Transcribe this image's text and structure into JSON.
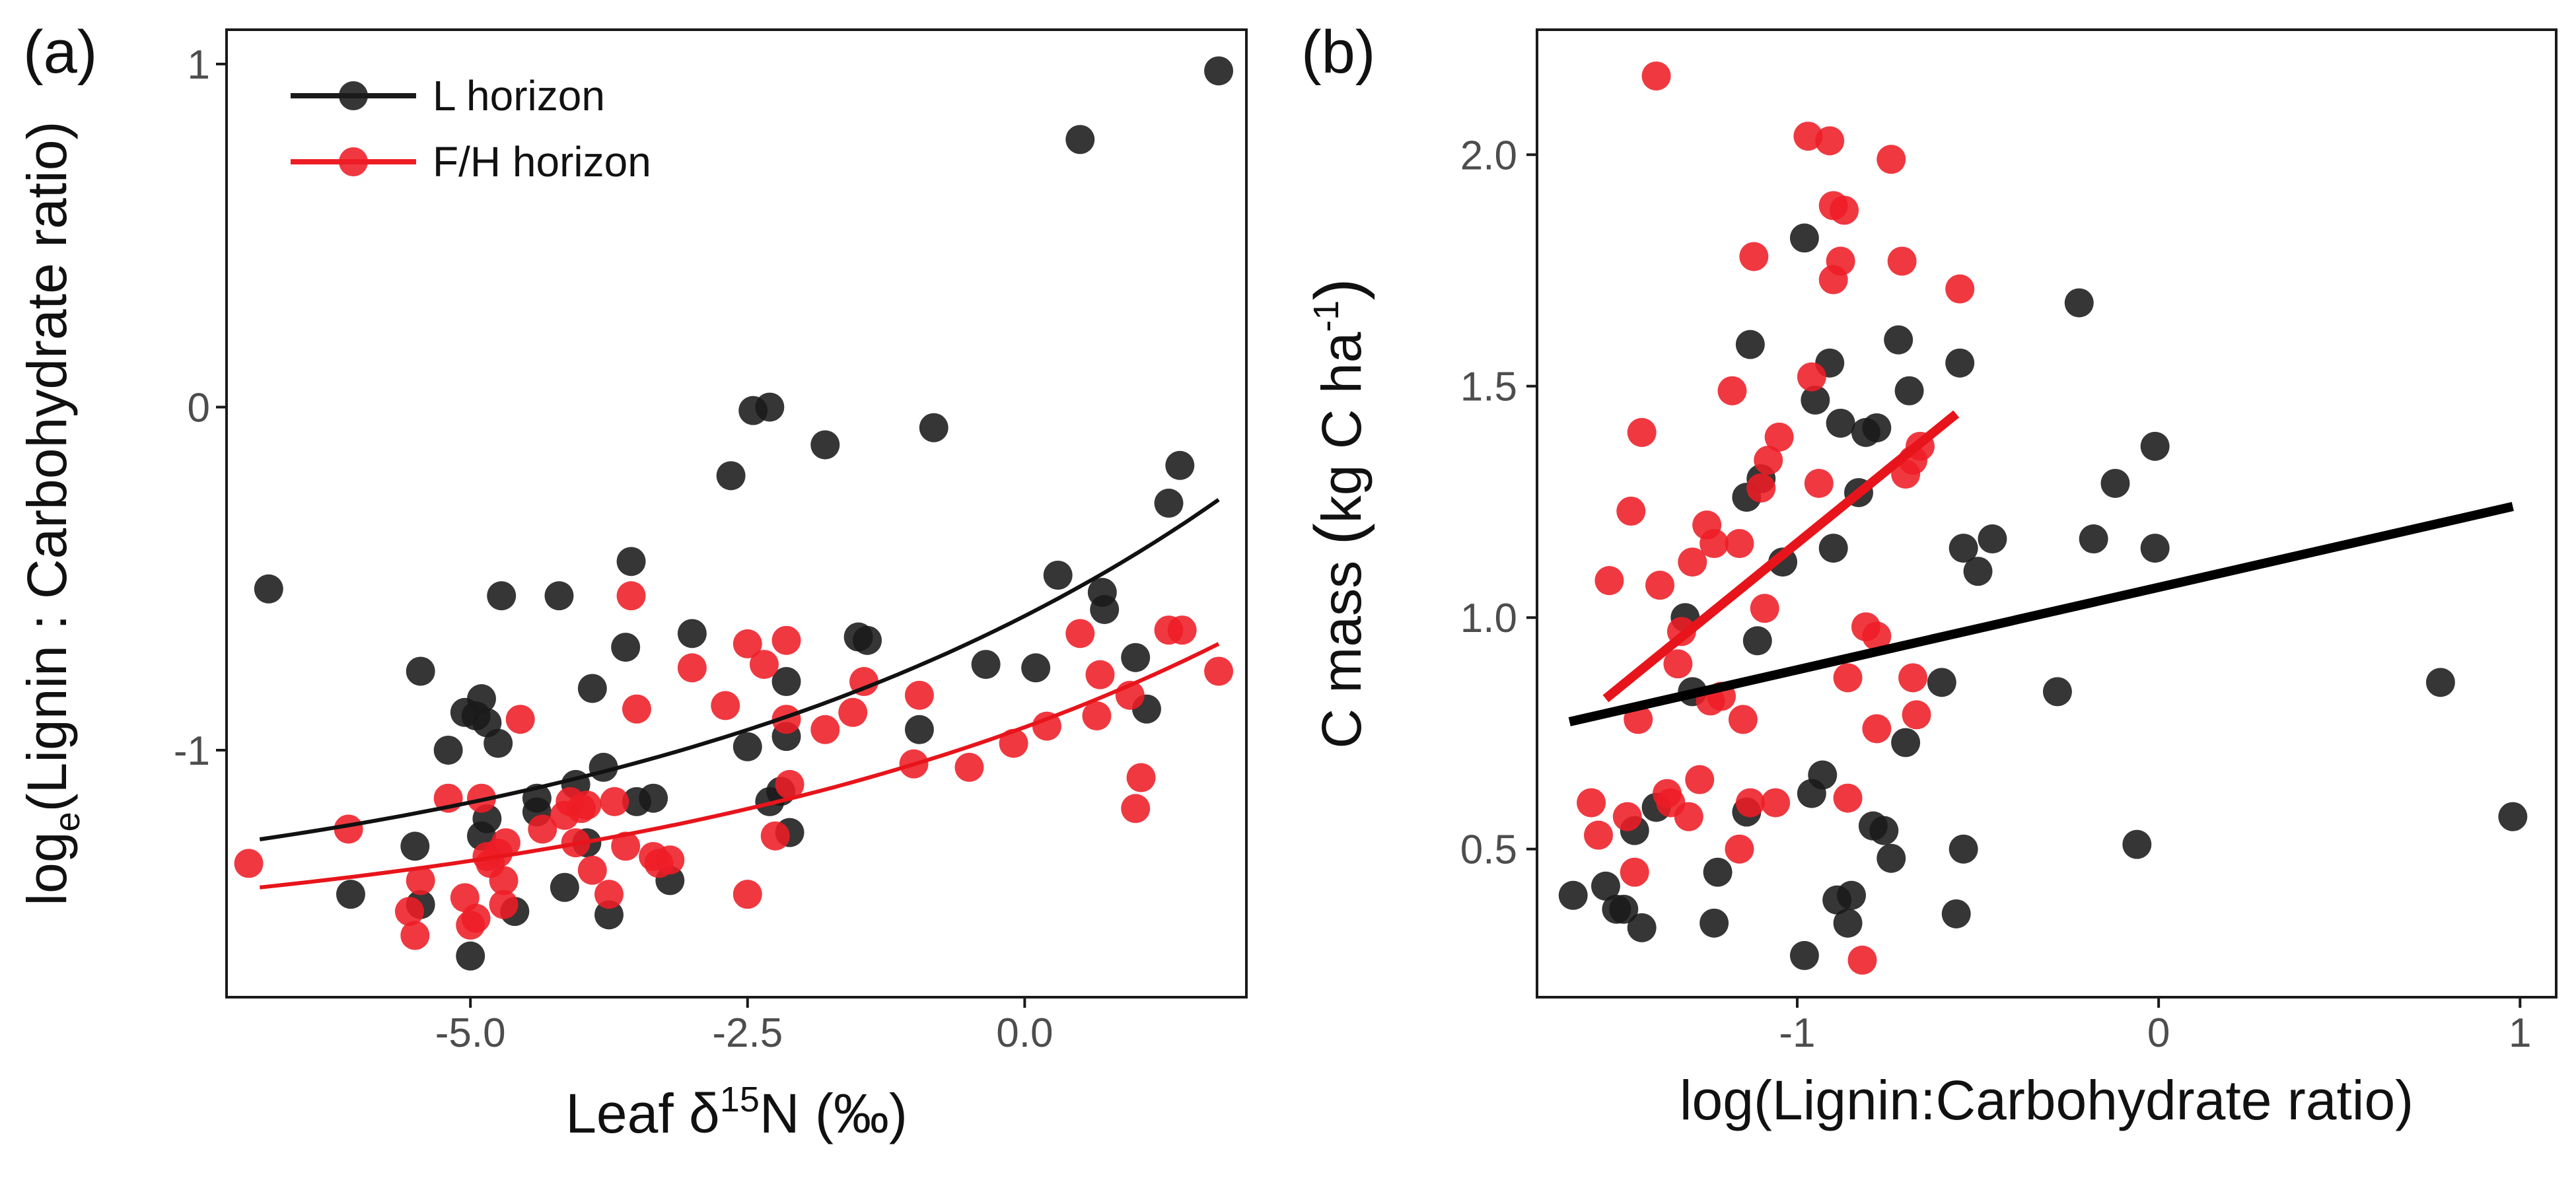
{
  "chart_data": [
    {
      "panel_label": "(a)",
      "type": "scatter",
      "xlabel": {
        "main": "Leaf δ",
        "sup": "15",
        "rest": "N (‰)"
      },
      "ylabel": {
        "main": "log",
        "sub": "e",
        "rest": "(Lignin : Carbohydrate ratio)"
      },
      "xlim": [
        -7.2,
        2.0
      ],
      "ylim": [
        -1.72,
        1.1
      ],
      "xticks": [
        -5.0,
        -2.5,
        0.0
      ],
      "xtick_labels": [
        "-5.0",
        "-2.5",
        "0.0"
      ],
      "yticks": [
        -1,
        0,
        1
      ],
      "ytick_labels": [
        "-1",
        "0",
        "1"
      ],
      "grid": false,
      "legend": {
        "position": "top-left",
        "items": [
          {
            "label": "L horizon",
            "color": "#1a1a1a"
          },
          {
            "label": "F/H horizon",
            "color": "#ee1c25"
          }
        ]
      },
      "series": [
        {
          "name": "L horizon",
          "color": "#1a1a1a",
          "points": [
            [
              -6.82,
              -0.53
            ],
            [
              -6.08,
              -1.42
            ],
            [
              -5.45,
              -0.77
            ],
            [
              -5.5,
              -1.28
            ],
            [
              -5.45,
              -1.45
            ],
            [
              -5.2,
              -1.0
            ],
            [
              -5.05,
              -0.89
            ],
            [
              -4.95,
              -0.9
            ],
            [
              -4.9,
              -0.85
            ],
            [
              -4.85,
              -0.92
            ],
            [
              -4.85,
              -1.2
            ],
            [
              -4.75,
              -0.98
            ],
            [
              -4.72,
              -0.55
            ],
            [
              -4.6,
              -1.47
            ],
            [
              -4.4,
              -1.14
            ],
            [
              -4.2,
              -0.55
            ],
            [
              -4.15,
              -1.4
            ],
            [
              -4.05,
              -1.1
            ],
            [
              -3.95,
              -1.27
            ],
            [
              -3.9,
              -0.82
            ],
            [
              -3.8,
              -1.05
            ],
            [
              -3.75,
              -1.48
            ],
            [
              -3.6,
              -0.7
            ],
            [
              -3.55,
              -0.45
            ],
            [
              -3.35,
              -1.14
            ],
            [
              -3.2,
              -1.38
            ],
            [
              -3.0,
              -0.66
            ],
            [
              -2.65,
              -0.2
            ],
            [
              -2.5,
              -0.99
            ],
            [
              -2.45,
              -0.01
            ],
            [
              -2.3,
              0.0
            ],
            [
              -2.2,
              -1.12
            ],
            [
              -2.15,
              -0.8
            ],
            [
              -2.15,
              -0.96
            ],
            [
              -2.12,
              -1.24
            ],
            [
              -1.8,
              -0.11
            ],
            [
              -1.5,
              -0.67
            ],
            [
              -1.42,
              -0.68
            ],
            [
              -0.95,
              -0.94
            ],
            [
              -0.82,
              -0.06
            ],
            [
              -0.35,
              -0.75
            ],
            [
              0.1,
              -0.76
            ],
            [
              0.3,
              -0.49
            ],
            [
              0.5,
              0.78
            ],
            [
              0.7,
              -0.54
            ],
            [
              0.72,
              -0.59
            ],
            [
              1.0,
              -0.73
            ],
            [
              1.1,
              -0.88
            ],
            [
              1.3,
              -0.28
            ],
            [
              1.4,
              -0.17
            ],
            [
              1.75,
              0.98
            ],
            [
              -5.0,
              -1.6
            ],
            [
              -4.9,
              -1.25
            ],
            [
              -4.4,
              -1.18
            ],
            [
              -3.5,
              -1.15
            ],
            [
              -2.3,
              -1.15
            ]
          ]
        },
        {
          "name": "F/H horizon",
          "color": "#ee1c25",
          "points": [
            [
              -7.0,
              -1.33
            ],
            [
              -6.1,
              -1.23
            ],
            [
              -5.55,
              -1.47
            ],
            [
              -5.5,
              -1.54
            ],
            [
              -5.45,
              -1.38
            ],
            [
              -5.2,
              -1.14
            ],
            [
              -5.05,
              -1.43
            ],
            [
              -5.0,
              -1.51
            ],
            [
              -4.95,
              -1.49
            ],
            [
              -4.9,
              -1.14
            ],
            [
              -4.85,
              -1.31
            ],
            [
              -4.82,
              -1.33
            ],
            [
              -4.75,
              -1.3
            ],
            [
              -4.7,
              -1.38
            ],
            [
              -4.68,
              -1.27
            ],
            [
              -4.55,
              -0.91
            ],
            [
              -4.35,
              -1.23
            ],
            [
              -4.15,
              -1.19
            ],
            [
              -4.1,
              -1.15
            ],
            [
              -4.05,
              -1.27
            ],
            [
              -4.0,
              -1.17
            ],
            [
              -3.95,
              -1.16
            ],
            [
              -3.9,
              -1.35
            ],
            [
              -3.75,
              -1.42
            ],
            [
              -3.7,
              -1.15
            ],
            [
              -3.6,
              -1.28
            ],
            [
              -3.55,
              -0.55
            ],
            [
              -3.5,
              -0.88
            ],
            [
              -3.35,
              -1.31
            ],
            [
              -3.2,
              -1.32
            ],
            [
              -3.0,
              -0.76
            ],
            [
              -2.7,
              -0.87
            ],
            [
              -2.5,
              -0.69
            ],
            [
              -2.5,
              -1.42
            ],
            [
              -2.35,
              -0.75
            ],
            [
              -2.25,
              -1.25
            ],
            [
              -2.15,
              -0.68
            ],
            [
              -2.15,
              -0.91
            ],
            [
              -2.12,
              -1.1
            ],
            [
              -1.8,
              -0.94
            ],
            [
              -1.55,
              -0.89
            ],
            [
              -1.45,
              -0.8
            ],
            [
              -1.0,
              -1.04
            ],
            [
              -0.95,
              -0.84
            ],
            [
              -0.5,
              -1.05
            ],
            [
              -0.1,
              -0.98
            ],
            [
              0.2,
              -0.93
            ],
            [
              0.5,
              -0.66
            ],
            [
              0.65,
              -0.9
            ],
            [
              0.68,
              -0.78
            ],
            [
              0.95,
              -0.84
            ],
            [
              1.0,
              -1.17
            ],
            [
              1.05,
              -1.08
            ],
            [
              1.3,
              -0.65
            ],
            [
              1.42,
              -0.65
            ],
            [
              1.75,
              -0.77
            ],
            [
              -4.7,
              -1.45
            ],
            [
              -3.3,
              -1.33
            ]
          ]
        }
      ],
      "fit_lines": [
        {
          "name": "L horizon",
          "color": "#111111",
          "x": [
            -6.9,
            1.75
          ],
          "y": [
            -1.26,
            -0.27
          ],
          "form": "exponential"
        },
        {
          "name": "F/H horizon",
          "color": "#e8141b",
          "x": [
            -6.9,
            1.75
          ],
          "y": [
            -1.4,
            -0.69
          ],
          "form": "exponential"
        }
      ]
    },
    {
      "panel_label": "(b)",
      "type": "scatter",
      "xlabel": {
        "main": "log(Lignin:Carbohydrate ratio)"
      },
      "ylabel": {
        "main": "C mass ",
        "paren_open": "(",
        "inner": "kg C ha",
        "sup": "-1",
        "paren_close": ")"
      },
      "xlim": [
        -1.72,
        1.1
      ],
      "ylim": [
        0.18,
        2.27
      ],
      "xticks": [
        -1,
        0,
        1
      ],
      "xtick_labels": [
        "-1",
        "0",
        "1"
      ],
      "yticks": [
        0.5,
        1.0,
        1.5,
        2.0
      ],
      "ytick_labels": [
        "0.5",
        "1.0",
        "1.5",
        "2.0"
      ],
      "grid": false,
      "series": [
        {
          "name": "L horizon",
          "color": "#1a1a1a",
          "points": [
            [
              -1.62,
              0.4
            ],
            [
              -1.53,
              0.42
            ],
            [
              -1.5,
              0.37
            ],
            [
              -1.48,
              0.37
            ],
            [
              -1.45,
              0.54
            ],
            [
              -1.43,
              0.33
            ],
            [
              -1.39,
              0.59
            ],
            [
              -1.31,
              1.0
            ],
            [
              -1.29,
              0.84
            ],
            [
              -1.23,
              0.34
            ],
            [
              -1.22,
              0.45
            ],
            [
              -1.14,
              0.58
            ],
            [
              -1.14,
              1.26
            ],
            [
              -1.13,
              1.59
            ],
            [
              -1.11,
              0.95
            ],
            [
              -1.1,
              1.3
            ],
            [
              -1.04,
              1.12
            ],
            [
              -0.98,
              0.27
            ],
            [
              -0.98,
              1.82
            ],
            [
              -0.96,
              0.62
            ],
            [
              -0.95,
              1.47
            ],
            [
              -0.93,
              0.66
            ],
            [
              -0.91,
              1.55
            ],
            [
              -0.9,
              1.15
            ],
            [
              -0.89,
              0.39
            ],
            [
              -0.88,
              1.42
            ],
            [
              -0.86,
              0.34
            ],
            [
              -0.85,
              0.4
            ],
            [
              -0.83,
              1.27
            ],
            [
              -0.81,
              1.4
            ],
            [
              -0.79,
              0.55
            ],
            [
              -0.78,
              1.41
            ],
            [
              -0.76,
              0.54
            ],
            [
              -0.74,
              0.48
            ],
            [
              -0.72,
              1.6
            ],
            [
              -0.7,
              0.73
            ],
            [
              -0.69,
              1.49
            ],
            [
              -0.6,
              0.86
            ],
            [
              -0.56,
              0.36
            ],
            [
              -0.55,
              1.55
            ],
            [
              -0.54,
              0.5
            ],
            [
              -0.54,
              1.15
            ],
            [
              -0.5,
              1.1
            ],
            [
              -0.46,
              1.17
            ],
            [
              -0.28,
              0.84
            ],
            [
              -0.22,
              1.68
            ],
            [
              -0.18,
              1.17
            ],
            [
              -0.12,
              1.29
            ],
            [
              -0.06,
              0.51
            ],
            [
              -0.01,
              1.37
            ],
            [
              -0.01,
              1.15
            ],
            [
              0.78,
              0.86
            ],
            [
              0.98,
              0.57
            ]
          ]
        },
        {
          "name": "F/H horizon",
          "color": "#ee1c25",
          "points": [
            [
              -1.57,
              0.6
            ],
            [
              -1.55,
              0.53
            ],
            [
              -1.52,
              1.08
            ],
            [
              -1.47,
              0.57
            ],
            [
              -1.46,
              1.23
            ],
            [
              -1.45,
              0.45
            ],
            [
              -1.44,
              0.78
            ],
            [
              -1.43,
              1.4
            ],
            [
              -1.39,
              2.17
            ],
            [
              -1.38,
              1.07
            ],
            [
              -1.36,
              0.62
            ],
            [
              -1.35,
              0.6
            ],
            [
              -1.33,
              0.9
            ],
            [
              -1.32,
              0.97
            ],
            [
              -1.3,
              0.57
            ],
            [
              -1.29,
              1.12
            ],
            [
              -1.27,
              0.65
            ],
            [
              -1.25,
              1.2
            ],
            [
              -1.24,
              0.82
            ],
            [
              -1.23,
              1.16
            ],
            [
              -1.21,
              0.83
            ],
            [
              -1.18,
              1.49
            ],
            [
              -1.16,
              0.5
            ],
            [
              -1.15,
              0.78
            ],
            [
              -1.13,
              0.6
            ],
            [
              -1.12,
              1.78
            ],
            [
              -1.1,
              1.28
            ],
            [
              -1.08,
              1.34
            ],
            [
              -1.06,
              0.6
            ],
            [
              -1.05,
              1.39
            ],
            [
              -0.97,
              2.04
            ],
            [
              -0.96,
              1.52
            ],
            [
              -0.94,
              1.29
            ],
            [
              -0.91,
              2.03
            ],
            [
              -0.9,
              1.89
            ],
            [
              -0.9,
              1.73
            ],
            [
              -0.88,
              1.77
            ],
            [
              -0.87,
              1.88
            ],
            [
              -0.86,
              0.61
            ],
            [
              -0.86,
              0.87
            ],
            [
              -0.82,
              0.26
            ],
            [
              -0.81,
              0.98
            ],
            [
              -0.78,
              0.96
            ],
            [
              -0.78,
              0.76
            ],
            [
              -0.74,
              1.99
            ],
            [
              -0.71,
              1.77
            ],
            [
              -0.7,
              1.31
            ],
            [
              -0.68,
              1.34
            ],
            [
              -0.68,
              0.87
            ],
            [
              -0.67,
              0.79
            ],
            [
              -0.66,
              1.37
            ],
            [
              -0.55,
              1.71
            ],
            [
              -1.16,
              1.16
            ],
            [
              -1.09,
              1.02
            ]
          ]
        }
      ],
      "fit_lines": [
        {
          "name": "L horizon",
          "color": "#000000",
          "x": [
            -1.63,
            0.98
          ],
          "y": [
            0.775,
            1.24
          ]
        },
        {
          "name": "F/H horizon",
          "color": "#e8141b",
          "x": [
            -1.53,
            -0.56
          ],
          "y": [
            0.825,
            1.44
          ]
        }
      ]
    }
  ]
}
